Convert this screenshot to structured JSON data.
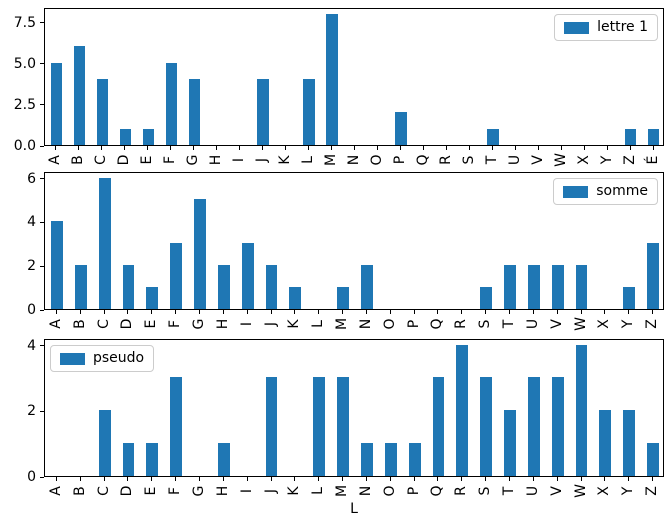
{
  "figure": {
    "xlabel": "L",
    "bar_color": "#1f77b4",
    "background": "#ffffff",
    "spine_color": "#000000",
    "legend_border_color": "#cccccc"
  },
  "chart_data": [
    {
      "type": "bar",
      "title": "",
      "legend": {
        "label": "lettre 1",
        "position": "upper-right"
      },
      "categories": [
        "A",
        "B",
        "C",
        "D",
        "E",
        "F",
        "G",
        "H",
        "I",
        "J",
        "K",
        "L",
        "M",
        "N",
        "O",
        "P",
        "Q",
        "R",
        "S",
        "T",
        "U",
        "V",
        "W",
        "X",
        "Y",
        "Z",
        "É"
      ],
      "values": [
        5,
        6,
        4,
        1,
        1,
        5,
        4,
        0,
        0,
        4,
        0,
        4,
        8,
        0,
        0,
        2,
        0,
        0,
        0,
        1,
        0,
        0,
        0,
        0,
        0,
        1,
        1
      ],
      "xlabel": "",
      "ylabel": "",
      "ylim": [
        0,
        8.4
      ],
      "yticks": [
        0,
        2.5,
        5,
        7.5
      ],
      "ytick_labels": [
        "0.0",
        "2.5",
        "5.0",
        "7.5"
      ],
      "xticklabel_rotation": 90,
      "grid": false
    },
    {
      "type": "bar",
      "title": "",
      "legend": {
        "label": "somme",
        "position": "upper-right"
      },
      "categories": [
        "A",
        "B",
        "C",
        "D",
        "E",
        "F",
        "G",
        "H",
        "I",
        "J",
        "K",
        "L",
        "M",
        "N",
        "O",
        "P",
        "Q",
        "R",
        "S",
        "T",
        "U",
        "V",
        "W",
        "X",
        "Y",
        "Z"
      ],
      "values": [
        4,
        2,
        6,
        2,
        1,
        3,
        5,
        2,
        3,
        2,
        1,
        0,
        1,
        2,
        0,
        0,
        0,
        0,
        1,
        2,
        2,
        2,
        2,
        0,
        1,
        3
      ],
      "xlabel": "",
      "ylabel": "",
      "ylim": [
        0,
        6.3
      ],
      "yticks": [
        0,
        2,
        4,
        6
      ],
      "ytick_labels": [
        "0",
        "2",
        "4",
        "6"
      ],
      "xticklabel_rotation": 90,
      "grid": false
    },
    {
      "type": "bar",
      "title": "",
      "legend": {
        "label": "pseudo",
        "position": "upper-left"
      },
      "categories": [
        "A",
        "B",
        "C",
        "D",
        "E",
        "F",
        "G",
        "H",
        "I",
        "J",
        "K",
        "L",
        "M",
        "N",
        "O",
        "P",
        "Q",
        "R",
        "S",
        "T",
        "U",
        "V",
        "W",
        "X",
        "Y",
        "Z"
      ],
      "values": [
        0,
        0,
        2,
        1,
        1,
        3,
        0,
        1,
        0,
        3,
        0,
        3,
        3,
        1,
        1,
        1,
        3,
        4,
        3,
        2,
        3,
        3,
        4,
        2,
        2,
        1
      ],
      "xlabel": "L",
      "ylabel": "",
      "ylim": [
        0,
        4.2
      ],
      "yticks": [
        0,
        2,
        4
      ],
      "ytick_labels": [
        "0",
        "2",
        "4"
      ],
      "xticklabel_rotation": 90,
      "grid": false
    }
  ]
}
